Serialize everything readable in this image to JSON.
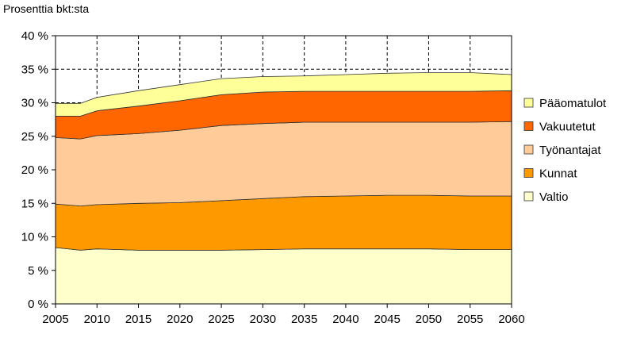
{
  "chart_data": {
    "type": "area",
    "stacked": true,
    "title": "",
    "ylabel": "Prosenttia bkt:sta",
    "xlabel": "",
    "x": [
      2005,
      2008,
      2010,
      2015,
      2020,
      2025,
      2030,
      2035,
      2040,
      2045,
      2050,
      2055,
      2060
    ],
    "xticks": [
      "2005",
      "2010",
      "2015",
      "2020",
      "2025",
      "2030",
      "2035",
      "2040",
      "2045",
      "2050",
      "2055",
      "2060"
    ],
    "yticks": [
      "0 %",
      "5 %",
      "10 %",
      "15 %",
      "20 %",
      "25 %",
      "30 %",
      "35 %",
      "40 %"
    ],
    "ylim": [
      0,
      40
    ],
    "xlim": [
      2005,
      2060
    ],
    "grid": "dashed vertical lines at x ticks; dashed horizontal lines at y ticks above the stacked top",
    "legend_position": "right",
    "series": [
      {
        "name": "Valtio",
        "color": "#FFFFCC",
        "values": [
          8.4,
          8.0,
          8.2,
          8.0,
          8.0,
          8.0,
          8.1,
          8.2,
          8.2,
          8.2,
          8.2,
          8.1,
          8.1
        ]
      },
      {
        "name": "Kunnat",
        "color": "#FF9900",
        "values": [
          6.5,
          6.6,
          6.6,
          7.0,
          7.1,
          7.4,
          7.6,
          7.8,
          7.9,
          8.0,
          8.0,
          8.0,
          8.0
        ]
      },
      {
        "name": "Työnantajat",
        "color": "#FFCC99",
        "values": [
          9.9,
          10.0,
          10.3,
          10.4,
          10.8,
          11.2,
          11.2,
          11.1,
          11.0,
          10.9,
          10.9,
          11.0,
          11.1
        ]
      },
      {
        "name": "Vakuutetut",
        "color": "#FF6600",
        "values": [
          3.2,
          3.4,
          3.7,
          4.1,
          4.4,
          4.6,
          4.7,
          4.6,
          4.6,
          4.6,
          4.6,
          4.6,
          4.6
        ]
      },
      {
        "name": "Pääomatulot",
        "color": "#FFFF99",
        "values": [
          1.9,
          1.9,
          2.0,
          2.3,
          2.4,
          2.4,
          2.3,
          2.3,
          2.5,
          2.7,
          2.8,
          2.8,
          2.4
        ]
      }
    ],
    "legend_order": [
      "Pääomatulot",
      "Vakuutetut",
      "Työnantajat",
      "Kunnat",
      "Valtio"
    ]
  }
}
